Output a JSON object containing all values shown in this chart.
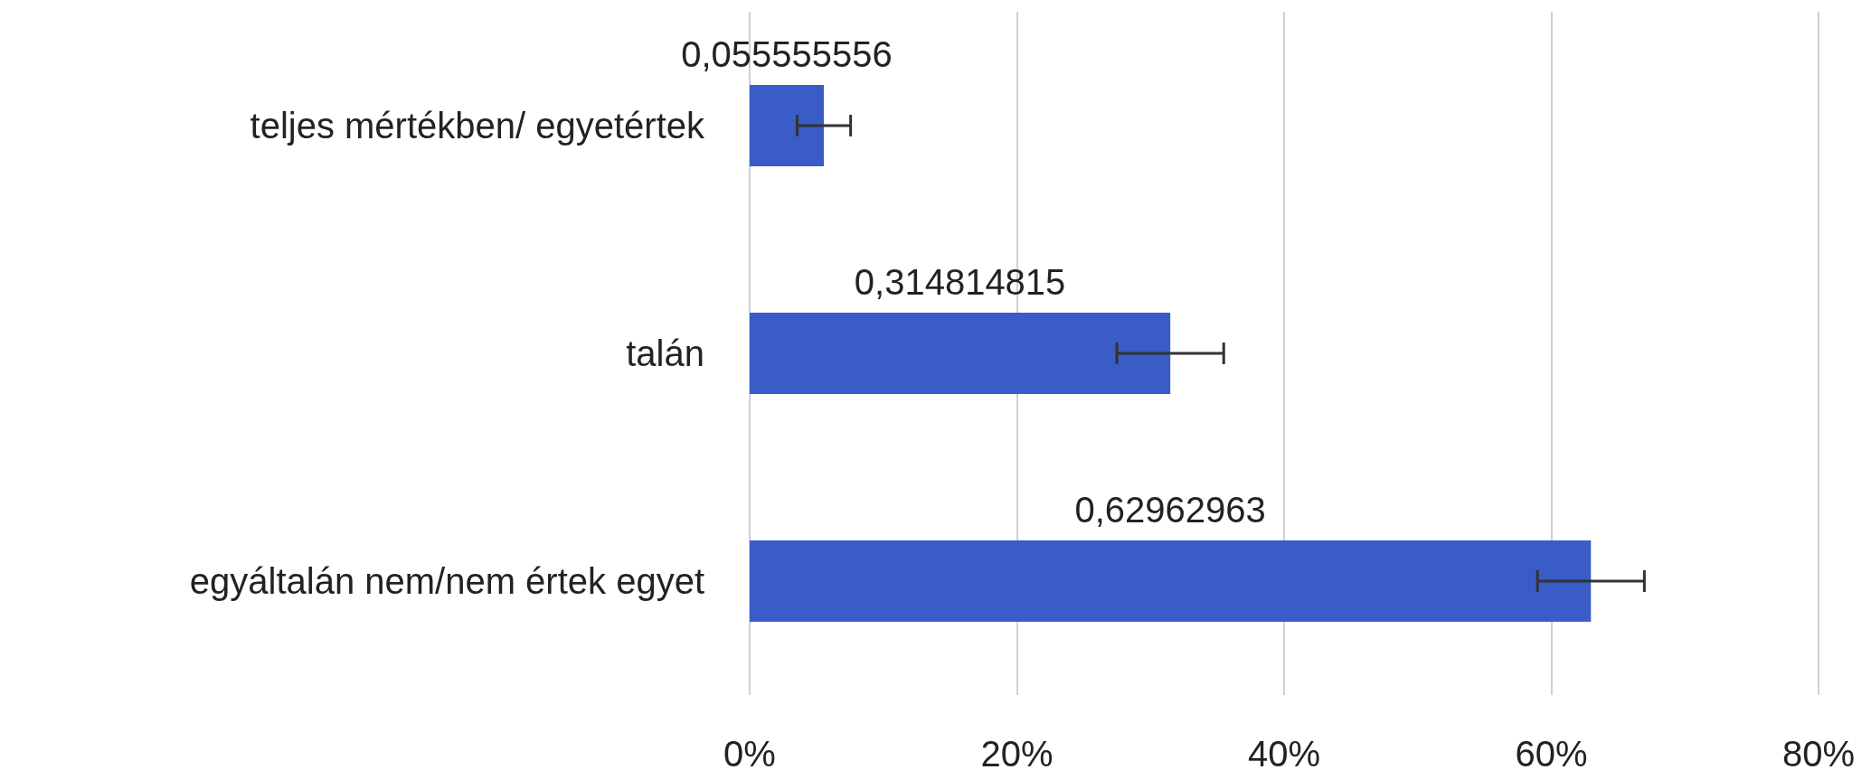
{
  "chart_data": {
    "type": "bar",
    "orientation": "horizontal",
    "categories": [
      "teljes mértékben/ egyetértek",
      "talán",
      "egyáltalán nem/nem értek egyet"
    ],
    "values": [
      0.055555556,
      0.314814815,
      0.62962963
    ],
    "value_labels": [
      "0,055555556",
      "0,314814815",
      "0,62962963"
    ],
    "errors": [
      0.02,
      0.04,
      0.04
    ],
    "color": "#3a5cc6",
    "xlim": [
      0,
      0.8
    ],
    "xticks": [
      {
        "value": 0,
        "label": "0%"
      },
      {
        "value": 0.2,
        "label": "20%"
      },
      {
        "value": 0.4,
        "label": "40%"
      },
      {
        "value": 0.6,
        "label": "60%"
      },
      {
        "value": 0.8,
        "label": "80%"
      }
    ],
    "grid": "x"
  }
}
